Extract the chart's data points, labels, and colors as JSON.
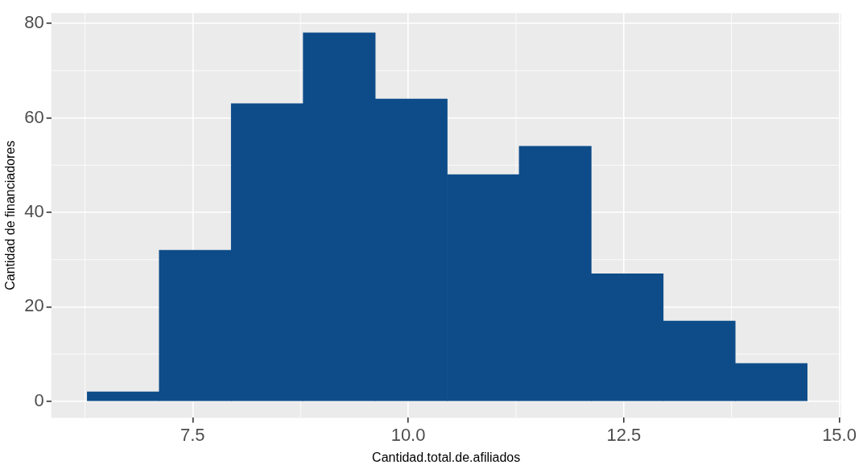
{
  "chart_data": {
    "type": "histogram",
    "xlabel": "Cantidad.total.de.afiliados",
    "ylabel": "Cantidad de financiadores",
    "bins": [
      6.28,
      7.11,
      7.95,
      8.78,
      9.62,
      10.45,
      11.29,
      12.12,
      12.96,
      13.79,
      14.63
    ],
    "values": [
      2,
      32,
      63,
      78,
      64,
      48,
      54,
      27,
      17,
      8
    ],
    "color": "#0d4c89",
    "xlim": [
      5.86,
      15.02
    ],
    "xticks": [
      {
        "value": 7.5,
        "label": "7.5"
      },
      {
        "value": 10,
        "label": "10.0"
      },
      {
        "value": 12.5,
        "label": "12.5"
      },
      {
        "value": 15,
        "label": "15.0"
      }
    ],
    "ylim": [
      -3.5,
      82.2
    ],
    "yticks": [
      0,
      20,
      40,
      60,
      80
    ],
    "grid": true,
    "legend": false
  }
}
